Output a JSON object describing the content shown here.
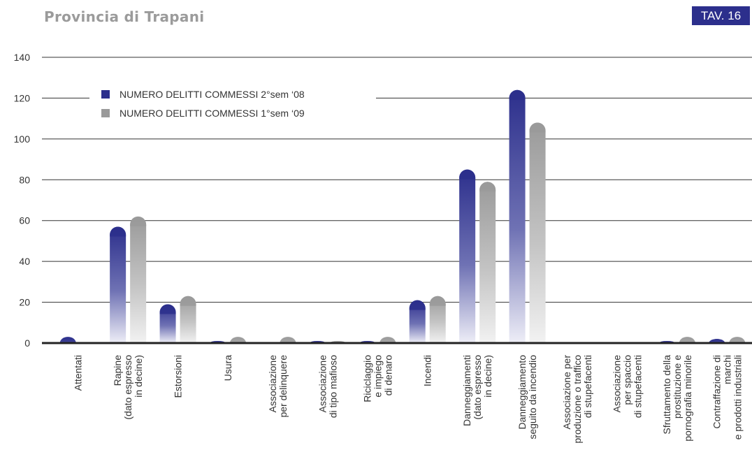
{
  "header": {
    "title": "Provincia di Trapani",
    "badge": "TAV. 16"
  },
  "colors": {
    "series1": "#2c2f8c",
    "series2": "#9a9a9a"
  },
  "chart_data": {
    "type": "bar",
    "ylim": [
      0,
      140
    ],
    "yticks": [
      0,
      20,
      40,
      60,
      80,
      100,
      120,
      140
    ],
    "grid": true,
    "legend_position": "top-left",
    "categories": [
      [
        "Attentati"
      ],
      [
        "Rapine",
        "(dato espresso",
        "in decine)"
      ],
      [
        "Estorsioni"
      ],
      [
        "Usura"
      ],
      [
        "Associazione",
        "per delinquere"
      ],
      [
        "Associazione",
        "di tipo mafioso"
      ],
      [
        "Riciclaggio",
        "e impiego",
        "di denaro"
      ],
      [
        "Incendi"
      ],
      [
        "Danneggiamenti",
        "(dato espresso",
        "in decine)"
      ],
      [
        "Danneggiamento",
        "seguito da incendio"
      ],
      [
        "Associazione per",
        "produzione o traffico",
        "di stupefacenti"
      ],
      [
        "Associazione",
        "per spaccio",
        "di stupefacenti"
      ],
      [
        "Sfruttamento della",
        "prostituzione e",
        "pornografia minorile"
      ],
      [
        "Contraffazione di",
        "marchi",
        "e prodotti industriali"
      ]
    ],
    "series": [
      {
        "name": "NUMERO DELITTI COMMESSI 2°sem ‘08",
        "values": [
          3,
          57,
          19,
          1,
          0,
          1,
          1,
          21,
          85,
          124,
          0,
          0,
          1,
          2
        ]
      },
      {
        "name": "NUMERO DELITTI COMMESSI 1°sem ‘09",
        "values": [
          0,
          62,
          23,
          3,
          3,
          1,
          3,
          23,
          79,
          108,
          0,
          0,
          3,
          3
        ]
      }
    ]
  }
}
